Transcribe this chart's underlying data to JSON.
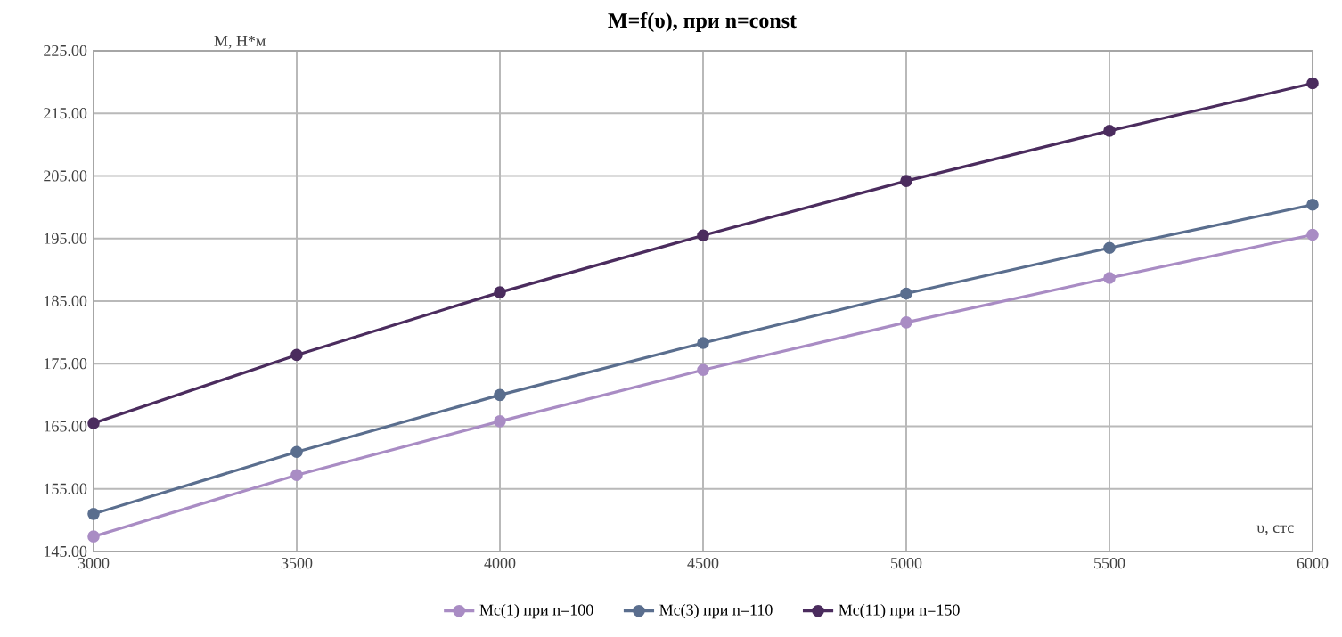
{
  "chart_data": {
    "type": "line",
    "title": "M=f(υ), при n=const",
    "xlabel": "υ, стс",
    "ylabel": "М, Н*м",
    "x": [
      3000,
      3500,
      4000,
      4500,
      5000,
      5500,
      6000
    ],
    "xlim": [
      3000,
      6000
    ],
    "xticks": [
      3000,
      3500,
      4000,
      4500,
      5000,
      5500,
      6000
    ],
    "ylim": [
      145,
      225
    ],
    "yticks": [
      {
        "value": 145,
        "label": "145.00"
      },
      {
        "value": 155,
        "label": "155.00"
      },
      {
        "value": 165,
        "label": "165.00"
      },
      {
        "value": 175,
        "label": "175.00"
      },
      {
        "value": 185,
        "label": "185.00"
      },
      {
        "value": 195,
        "label": "195.00"
      },
      {
        "value": 205,
        "label": "205.00"
      },
      {
        "value": 215,
        "label": "215.00"
      },
      {
        "value": 225,
        "label": "225.00"
      }
    ],
    "grid": true,
    "legend": "bottom",
    "marker": "circle",
    "line_style": "solid",
    "series": [
      {
        "name": "Mc(1) при n=100",
        "color": "#a98cc4",
        "values": [
          147.4,
          157.2,
          165.8,
          174.0,
          181.6,
          188.7,
          195.6
        ]
      },
      {
        "name": "Mc(3) при n=110",
        "color": "#5a6e8e",
        "values": [
          151.0,
          160.9,
          170.0,
          178.3,
          186.2,
          193.5,
          200.4
        ]
      },
      {
        "name": "Mc(11) при n=150",
        "color": "#4b2c5e",
        "values": [
          165.5,
          176.4,
          186.4,
          195.5,
          204.2,
          212.2,
          219.8
        ]
      }
    ]
  }
}
